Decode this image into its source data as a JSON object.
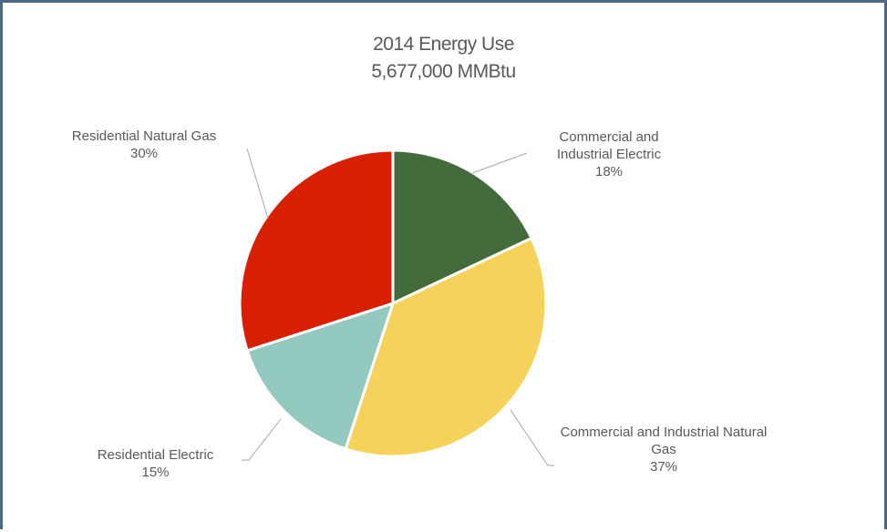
{
  "chart_data": {
    "type": "pie",
    "title": "2014 Energy Use",
    "subtitle": "5,677,000 MMBtu",
    "categories": [
      "Commercial and Industrial Electric",
      "Commercial and Industrial Natural Gas",
      "Residential Electric",
      "Residential Natural Gas"
    ],
    "values": [
      18,
      37,
      15,
      30
    ],
    "value_labels": [
      "18%",
      "37%",
      "15%",
      "30%"
    ],
    "colors": [
      "#436b3c",
      "#f5d35a",
      "#94c9c0",
      "#d91f02"
    ]
  }
}
